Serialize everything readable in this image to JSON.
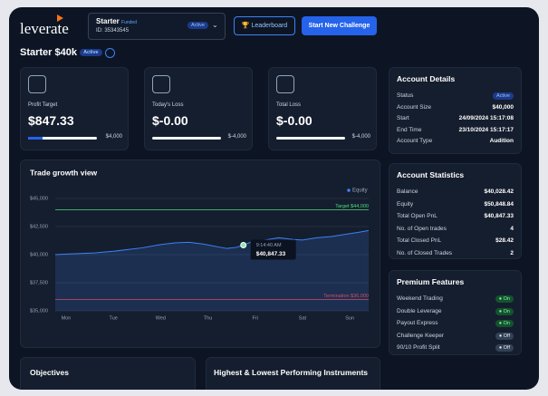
{
  "header": {
    "logo": "leverate",
    "account": {
      "name": "Starter",
      "tag": "Funded",
      "id": "ID: 35343545",
      "status": "Active"
    },
    "leaderboard": "Leaderboard",
    "new_challenge": "Start New Challenge"
  },
  "page": {
    "title": "Starter $40k",
    "status": "Active"
  },
  "cards": [
    {
      "label": "Profit Target",
      "value": "$847.33",
      "limit": "$4,000",
      "progress": 21
    },
    {
      "label": "Today's Loss",
      "value": "$-0.00",
      "limit": "$-4,000",
      "progress": 0
    },
    {
      "label": "Total Loss",
      "value": "$-0.00",
      "limit": "$-4,000",
      "progress": 0
    }
  ],
  "chart_data": {
    "type": "line",
    "title": "Trade growth view",
    "categories": [
      "Mon",
      "Tue",
      "Wed",
      "Thu",
      "Fri",
      "Sat",
      "Sun"
    ],
    "series": [
      {
        "name": "Equity",
        "color": "#3b82f6",
        "x": [
          -0.23,
          0,
          0.3,
          0.6,
          1,
          1.3,
          1.6,
          2,
          2.3,
          2.6,
          2.9,
          3.2,
          3.4,
          3.6,
          3.75,
          3.9,
          4.2,
          4.5,
          4.8,
          5,
          5.3,
          5.6,
          5.9,
          6.2,
          6.4
        ],
        "values": [
          40000,
          40050,
          40100,
          40150,
          40300,
          40450,
          40600,
          40900,
          41050,
          41100,
          40950,
          40700,
          40550,
          40650,
          40847.33,
          41100,
          41300,
          41500,
          41350,
          41300,
          41500,
          41600,
          41800,
          42000,
          42150
        ]
      }
    ],
    "xlim": [
      -0.23,
      6.4
    ],
    "ylim": [
      35000,
      45000
    ],
    "yticks": [
      {
        "value": 45000,
        "label": "$45,000"
      },
      {
        "value": 42500,
        "label": "$42,500"
      },
      {
        "value": 40000,
        "label": "$40,000"
      },
      {
        "value": 37500,
        "label": "$37,500"
      },
      {
        "value": 35000,
        "label": "$35,000"
      }
    ],
    "lines": [
      {
        "label": "Target $44,000",
        "value": 44000,
        "color": "#4ade80"
      },
      {
        "label": "Termination $36,000",
        "value": 36000,
        "color": "#ef4444"
      }
    ],
    "tooltip": {
      "x": 3.75,
      "time": "9:14:40 AM",
      "value": 40847.33,
      "label": "$40,847.33"
    },
    "grid": true
  },
  "account_details": {
    "title": "Account Details",
    "rows": [
      [
        "Status",
        "Active"
      ],
      [
        "Account Size",
        "$40,000"
      ],
      [
        "Start",
        "24/09/2024 15:17:08"
      ],
      [
        "End Time",
        "23/10/2024 15:17:17"
      ],
      [
        "Account Type",
        "Audition"
      ]
    ]
  },
  "account_statistics": {
    "title": "Account Statistics",
    "rows": [
      [
        "Balance",
        "$40,028.42"
      ],
      [
        "Equity",
        "$50,848.84"
      ],
      [
        "Total Open PnL",
        "$40,847.33"
      ],
      [
        "No. of Open trades",
        "4"
      ],
      [
        "Total Closed PnL",
        "$28.42"
      ],
      [
        "No. of Closed Trades",
        "2"
      ]
    ]
  },
  "premium_features": {
    "title": "Premium Features",
    "rows": [
      [
        "Weekend Trading",
        "On"
      ],
      [
        "Double Leverage",
        "On"
      ],
      [
        "Payout Express",
        "On"
      ],
      [
        "Challenge Keeper",
        "Off"
      ],
      [
        "90/10 Profit Split",
        "Off"
      ]
    ]
  },
  "bottom": [
    "Objectives",
    "Highest & Lowest Performing Instruments"
  ]
}
